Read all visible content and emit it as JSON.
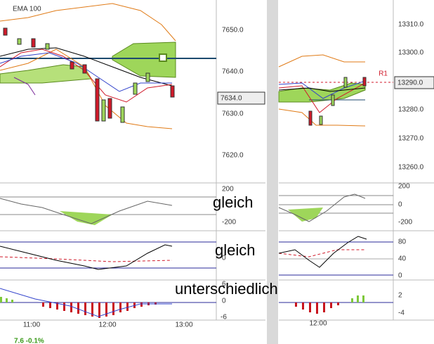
{
  "left_panel": {
    "header": "EMA 100",
    "price_axis": [
      "7650.0",
      "7640.0",
      "7630.0",
      "7620.0"
    ],
    "current_price": "7634.0",
    "indicator1_axis": [
      "200",
      "-200"
    ],
    "indicator2_axis": [
      "0"
    ],
    "indicator3_axis": [
      "6",
      "0",
      "-6"
    ],
    "time_axis": [
      "11:00",
      "12:00",
      "13:00"
    ],
    "footer": "7.6 -0.1%"
  },
  "right_panel": {
    "price_axis": [
      "13310.0",
      "13300.0",
      "13280.0",
      "13270.0",
      "13260.0"
    ],
    "current_price": "13290.0",
    "level_label": "R1",
    "indicator1_axis": [
      "200",
      "0",
      "-200"
    ],
    "indicator2_axis": [
      "80",
      "40",
      "0"
    ],
    "indicator3_axis": [
      "2",
      "-4"
    ],
    "time_axis": [
      "12:00"
    ]
  },
  "annotations": [
    "gleich",
    "gleich",
    "unterschiedlich"
  ]
}
